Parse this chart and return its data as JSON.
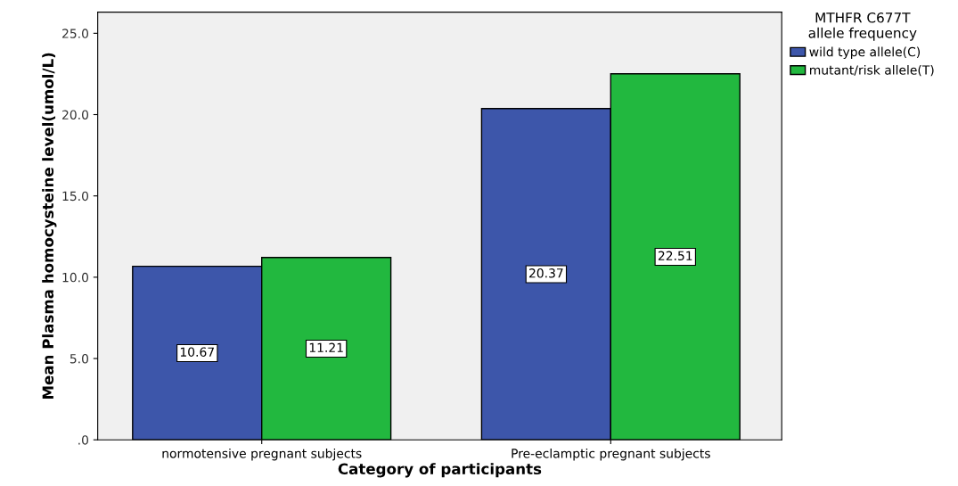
{
  "chart_data": {
    "type": "bar",
    "xlabel": "Category of participants",
    "ylabel": "Mean Plasma homocysteine level(umol/L)",
    "legend_title": "MTHFR C677T\nallele frequency",
    "categories": [
      "normotensive pregnant subjects",
      "Pre-eclamptic pregnant subjects"
    ],
    "series": [
      {
        "name": "wild type allele(C)",
        "color": "#3d56aa",
        "values": [
          10.67,
          20.37
        ]
      },
      {
        "name": "mutant/risk allele(T)",
        "color": "#22b83f",
        "values": [
          11.21,
          22.51
        ]
      }
    ],
    "ylim": [
      0,
      26.3
    ],
    "yticks": [
      {
        "value": 0,
        "label": ".0"
      },
      {
        "value": 5,
        "label": "5.0"
      },
      {
        "value": 10,
        "label": "10.0"
      },
      {
        "value": 15,
        "label": "15.0"
      },
      {
        "value": 20,
        "label": "20.0"
      },
      {
        "value": 25,
        "label": "25.0"
      }
    ],
    "data_labels": true,
    "legend": "top right",
    "grid": false
  }
}
